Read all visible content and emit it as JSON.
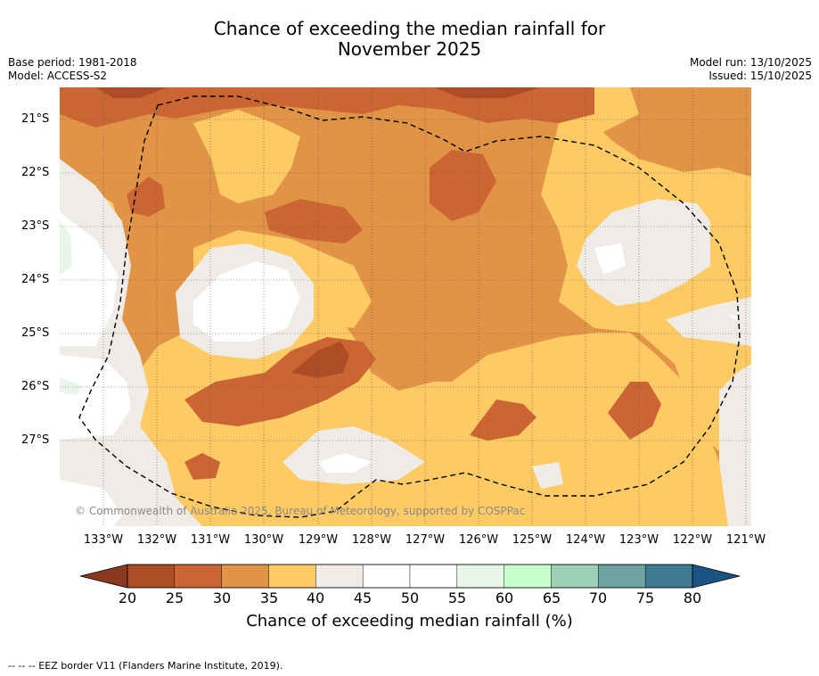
{
  "title": {
    "line1": "Chance of exceeding the median rainfall for",
    "line2": "November 2025"
  },
  "meta_left": {
    "base_period": "Base period: 1981-2018",
    "model": "Model: ACCESS-S2"
  },
  "meta_right": {
    "model_run": "Model run: 13/10/2025",
    "issued": "Issued: 15/10/2025"
  },
  "map": {
    "lat_labels": [
      "21°S",
      "22°S",
      "23°S",
      "24°S",
      "25°S",
      "26°S",
      "27°S"
    ],
    "lon_labels": [
      "133°W",
      "132°W",
      "131°W",
      "130°W",
      "129°W",
      "128°W",
      "127°W",
      "126°W",
      "125°W",
      "124°W",
      "123°W",
      "122°W",
      "121°W"
    ],
    "credit": "© Commonwealth of Australia 2025, Bureau of Meteorology, supported by COSPPac",
    "colors": {
      "c20_25": "#ad4d26",
      "c25_30": "#cb6533",
      "c30_35": "#e19445",
      "c35_40": "#fdca64",
      "c40_45": "#efebe7",
      "c45_55": "#ffffff",
      "c55_60": "#e8f5e9"
    }
  },
  "colorbar": {
    "ticks": [
      "20",
      "25",
      "30",
      "35",
      "40",
      "45",
      "50",
      "55",
      "60",
      "65",
      "70",
      "75",
      "80"
    ],
    "colors": [
      "#ad4d26",
      "#cb6533",
      "#e19445",
      "#fdca64",
      "#efebe7",
      "#ffffff",
      "#ffffff",
      "#e8f5e9",
      "#c8ffcc",
      "#9dd0b6",
      "#6ea3a3",
      "#3f7a93"
    ],
    "under_color": "#8b3a1f",
    "over_color": "#1b5483",
    "title": "Chance of exceeding median rainfall (%)"
  },
  "footer": "--  --  -- EEZ border V11 (Flanders Marine Institute, 2019)."
}
